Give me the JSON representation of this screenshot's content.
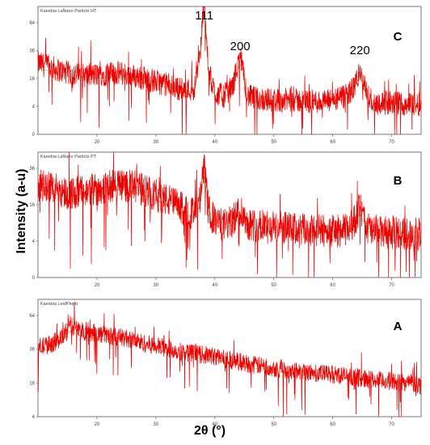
{
  "figure": {
    "ylabel": "Intensity  (a-u)",
    "xlabel": "2θ (°)"
  },
  "chart_data": [
    {
      "type": "line",
      "panel_label": "C",
      "header": "Kaesbia LaNano Particle HT",
      "xlim": [
        10,
        75
      ],
      "x_ticks": [
        20,
        30,
        40,
        50,
        60,
        70
      ],
      "y_ticks": [
        "64",
        "36",
        "16",
        "4",
        "0"
      ],
      "scale": "sqrt",
      "noise": 0.85,
      "series": [
        {
          "x": [
            10,
            12,
            15,
            18,
            21,
            24,
            27,
            30,
            33,
            35,
            36.5,
            37.5,
            38.2,
            38.9,
            40,
            41.5,
            43,
            44.3,
            45.5,
            47,
            50,
            53,
            56,
            59,
            62,
            63.5,
            64.6,
            65.8,
            67,
            70,
            75
          ],
          "y": [
            5.0,
            4.7,
            4.3,
            4.1,
            4.2,
            4.3,
            4.0,
            3.7,
            3.3,
            3.1,
            3.2,
            5.6,
            9.6,
            4.5,
            2.9,
            2.7,
            3.3,
            5.5,
            2.7,
            2.5,
            2.4,
            2.4,
            2.3,
            2.3,
            2.6,
            3.2,
            4.4,
            2.8,
            2.2,
            2.2,
            2.1
          ]
        }
      ],
      "annotations": [
        {
          "text": "111",
          "x": 38.2
        },
        {
          "text": "200",
          "x": 44.3
        },
        {
          "text": "220",
          "x": 64.6
        }
      ]
    },
    {
      "type": "line",
      "panel_label": "B",
      "header": "Kaesbia LaNano Particle PT",
      "xlim": [
        10,
        75
      ],
      "x_ticks": [
        20,
        30,
        40,
        50,
        60,
        70
      ],
      "y_ticks": [
        "36",
        "16",
        "4",
        "0"
      ],
      "scale": "sqrt",
      "noise": 0.9,
      "series": [
        {
          "x": [
            10,
            12,
            15,
            18,
            21,
            24,
            27,
            30,
            33,
            35,
            36.5,
            37.5,
            38.2,
            38.9,
            40,
            41.5,
            43,
            44.3,
            45.5,
            47,
            50,
            53,
            56,
            59,
            62,
            63.5,
            64.6,
            65.8,
            67,
            70,
            75
          ],
          "y": [
            5.0,
            4.9,
            4.5,
            4.6,
            4.8,
            5.0,
            4.8,
            4.4,
            4.0,
            3.6,
            3.4,
            4.1,
            6.0,
            3.6,
            3.0,
            2.8,
            3.0,
            3.7,
            2.9,
            2.8,
            2.7,
            2.6,
            2.5,
            2.5,
            2.5,
            2.9,
            3.7,
            2.7,
            2.4,
            2.4,
            2.3
          ]
        }
      ]
    },
    {
      "type": "line",
      "panel_label": "A",
      "header": "Kaesbia LeafPlepb",
      "xlim": [
        10,
        75
      ],
      "x_ticks": [
        20,
        30,
        40,
        50,
        60,
        70
      ],
      "y_ticks": [
        "64",
        "36",
        "16",
        "4"
      ],
      "scale": "sqrt",
      "noise": 0.7,
      "series": [
        {
          "x": [
            10,
            12,
            14,
            15.5,
            17,
            19,
            22,
            25,
            28,
            31,
            34,
            37,
            40,
            43,
            46,
            49,
            52,
            55,
            58,
            61,
            64,
            67,
            70,
            73,
            75
          ],
          "y": [
            5.3,
            5.5,
            6.0,
            7.0,
            6.6,
            6.4,
            6.2,
            6.0,
            5.6,
            5.3,
            5.0,
            4.8,
            4.6,
            4.3,
            4.0,
            3.8,
            3.6,
            3.4,
            3.3,
            3.2,
            3.0,
            2.8,
            2.7,
            2.6,
            2.4
          ]
        }
      ]
    }
  ]
}
